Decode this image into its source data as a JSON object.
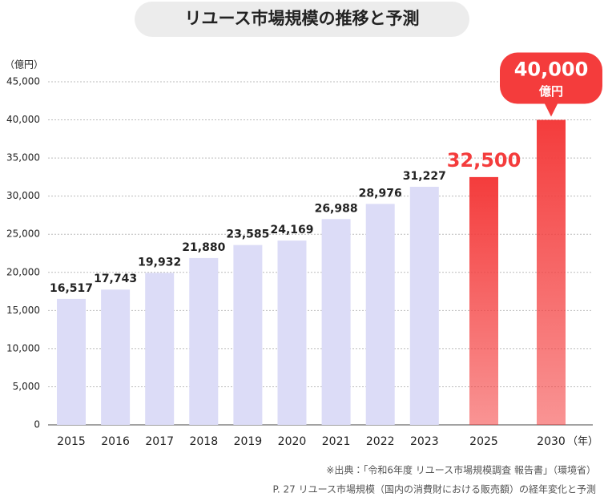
{
  "chart_data": {
    "type": "bar",
    "title": "リユース市場規模の推移と予測",
    "y_label": "（億円）",
    "x_label": "（年）",
    "categories": [
      "2015",
      "2016",
      "2017",
      "2018",
      "2019",
      "2020",
      "2021",
      "2022",
      "2023",
      "2025",
      "2030"
    ],
    "values": [
      16517,
      17743,
      19932,
      21880,
      23585,
      24169,
      26988,
      28976,
      31227,
      32500,
      40000
    ],
    "value_labels": [
      "16,517",
      "17,743",
      "19,932",
      "21,880",
      "23,585",
      "24,169",
      "26,988",
      "28,976",
      "31,227",
      "32,500",
      "40,000"
    ],
    "colors": [
      "#dcdcf7",
      "#dcdcf7",
      "#dcdcf7",
      "#dcdcf7",
      "#dcdcf7",
      "#dcdcf7",
      "#dcdcf7",
      "#dcdcf7",
      "#dcdcf7",
      "#f43c3c",
      "#f43c3c"
    ],
    "callout_unit": "億円",
    "ylim": [
      0,
      45000
    ],
    "yticks": [
      0,
      {
        "value": 5000,
        "label": "5,000"
      },
      {
        "value": 10000,
        "label": "10,000"
      },
      {
        "value": 15000,
        "label": "15,000"
      },
      {
        "value": 20000,
        "label": "20,000"
      },
      {
        "value": 25000,
        "label": "25,000"
      },
      {
        "value": 30000,
        "label": "30,000"
      },
      {
        "value": 35000,
        "label": "35,000"
      },
      {
        "value": 40000,
        "label": "40,000"
      },
      {
        "value": 45000,
        "label": "45,000"
      }
    ],
    "grid": true,
    "notes": [
      "※出典：「令和6年度 リユース市場規模調査 報告書」（環境省）",
      "P. 27 リユース市場規模（国内の消費財における販売額）の経年変化と予測"
    ]
  }
}
